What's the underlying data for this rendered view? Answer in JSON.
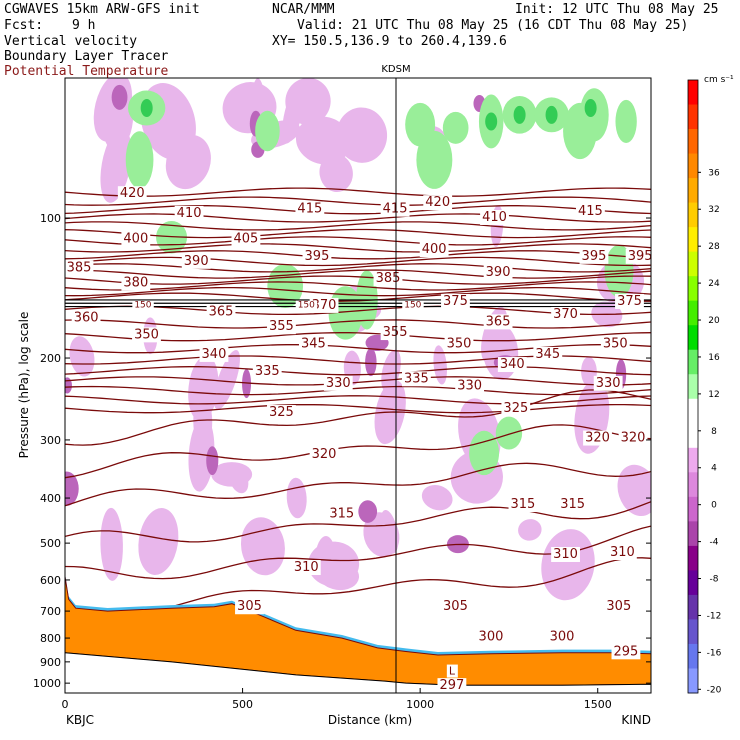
{
  "header": {
    "model": "CGWAVES 15km ARW-GFS init",
    "org": "NCAR/MMM",
    "init": "Init: 12 UTC Thu 08 May 25",
    "fcst_label": "Fcst:",
    "fcst_value": "9 h",
    "valid": "Valid: 21 UTC Thu 08 May 25 (16 CDT Thu 08 May 25)",
    "field1": "Vertical velocity",
    "field2": "Boundary Layer Tracer",
    "field3": "Potential Temperature",
    "xy": "XY= 150.5,136.9 to 260.4,139.6",
    "station_mid": "KDSM",
    "station_left": "KBJC",
    "station_right": "KIND"
  },
  "colors": {
    "theta_contour": "#7a0a0a",
    "terrain": "#ff8c00",
    "upward_green": "#55dd55",
    "downward_purple": "#cc88dd"
  },
  "chart_data": {
    "type": "cross-section",
    "xlabel": "Distance (km)",
    "ylabel": "Pressure (hPa), log scale",
    "x_ticks": [
      0,
      500,
      1000,
      1500
    ],
    "xlim": [
      0,
      1650
    ],
    "ylim": [
      1050,
      50
    ],
    "y_scale": "log",
    "y_ticks": [
      100,
      200,
      300,
      400,
      500,
      600,
      700,
      800,
      900,
      1000
    ],
    "colorbar": {
      "unit": "cm s⁻¹",
      "ticks": [
        36,
        32,
        28,
        24,
        20,
        16,
        12,
        8,
        4,
        0,
        -4,
        -8,
        -12,
        -16,
        -20
      ],
      "colors": [
        "#ff0000",
        "#ff3300",
        "#ff6600",
        "#ff8800",
        "#ffaa00",
        "#ffcc00",
        "#ffee00",
        "#ccff00",
        "#88ff00",
        "#44ee00",
        "#00dd00",
        "#66ee66",
        "#aaffaa",
        "#ffffff",
        "#ffffff",
        "#eeaaee",
        "#dd88dd",
        "#cc66cc",
        "#aa44aa",
        "#880088",
        "#660099",
        "#6633aa",
        "#6655cc",
        "#6677ee",
        "#8899ff"
      ]
    },
    "theta_labels": [
      {
        "v": "420",
        "x": 150,
        "p": 88
      },
      {
        "v": "410",
        "x": 310,
        "p": 97
      },
      {
        "v": "415",
        "x": 650,
        "p": 95
      },
      {
        "v": "415",
        "x": 890,
        "p": 95
      },
      {
        "v": "420",
        "x": 1010,
        "p": 92
      },
      {
        "v": "410",
        "x": 1170,
        "p": 99
      },
      {
        "v": "415",
        "x": 1440,
        "p": 96
      },
      {
        "v": "400",
        "x": 160,
        "p": 110
      },
      {
        "v": "405",
        "x": 470,
        "p": 110
      },
      {
        "v": "395",
        "x": 670,
        "p": 120
      },
      {
        "v": "400",
        "x": 1000,
        "p": 116
      },
      {
        "v": "390",
        "x": 1180,
        "p": 130
      },
      {
        "v": "395",
        "x": 1450,
        "p": 120
      },
      {
        "v": "395",
        "x": 1580,
        "p": 120
      },
      {
        "v": "385",
        "x": 0,
        "p": 127
      },
      {
        "v": "390",
        "x": 330,
        "p": 123
      },
      {
        "v": "380",
        "x": 160,
        "p": 137
      },
      {
        "v": "385",
        "x": 870,
        "p": 134
      },
      {
        "v": "360",
        "x": 20,
        "p": 163
      },
      {
        "v": "365",
        "x": 400,
        "p": 158
      },
      {
        "v": "370",
        "x": 690,
        "p": 153
      },
      {
        "v": "375",
        "x": 1060,
        "p": 150
      },
      {
        "v": "365",
        "x": 1180,
        "p": 166
      },
      {
        "v": "370",
        "x": 1370,
        "p": 160
      },
      {
        "v": "375",
        "x": 1550,
        "p": 150
      },
      {
        "v": "350",
        "x": 190,
        "p": 177
      },
      {
        "v": "355",
        "x": 570,
        "p": 170
      },
      {
        "v": "355",
        "x": 890,
        "p": 175
      },
      {
        "v": "350",
        "x": 1070,
        "p": 185
      },
      {
        "v": "345",
        "x": 660,
        "p": 185
      },
      {
        "v": "345",
        "x": 1320,
        "p": 195
      },
      {
        "v": "350",
        "x": 1510,
        "p": 185
      },
      {
        "v": "340",
        "x": 380,
        "p": 195
      },
      {
        "v": "340",
        "x": 1220,
        "p": 205
      },
      {
        "v": "335",
        "x": 530,
        "p": 212
      },
      {
        "v": "335",
        "x": 950,
        "p": 220
      },
      {
        "v": "330",
        "x": 730,
        "p": 225
      },
      {
        "v": "330",
        "x": 1100,
        "p": 228
      },
      {
        "v": "330",
        "x": 1490,
        "p": 225
      },
      {
        "v": "325",
        "x": 570,
        "p": 260
      },
      {
        "v": "325",
        "x": 1230,
        "p": 255
      },
      {
        "v": "320",
        "x": 690,
        "p": 320
      },
      {
        "v": "320",
        "x": 1460,
        "p": 295
      },
      {
        "v": "320",
        "x": 1560,
        "p": 295
      },
      {
        "v": "315",
        "x": 740,
        "p": 430
      },
      {
        "v": "315",
        "x": 1250,
        "p": 410
      },
      {
        "v": "315",
        "x": 1390,
        "p": 410
      },
      {
        "v": "310",
        "x": 640,
        "p": 560
      },
      {
        "v": "310",
        "x": 1370,
        "p": 525
      },
      {
        "v": "310",
        "x": 1530,
        "p": 520
      },
      {
        "v": "305",
        "x": 480,
        "p": 680
      },
      {
        "v": "305",
        "x": 1060,
        "p": 680
      },
      {
        "v": "305",
        "x": 1520,
        "p": 680
      },
      {
        "v": "300",
        "x": 1160,
        "p": 790
      },
      {
        "v": "300",
        "x": 1360,
        "p": 790
      },
      {
        "v": "295",
        "x": 1540,
        "p": 850
      },
      {
        "v": "297",
        "x": 1050,
        "p": 1005
      }
    ],
    "tropopause_labels": [
      {
        "v": "150",
        "x": 180,
        "p": 152
      },
      {
        "v": "150",
        "x": 640,
        "p": 152
      },
      {
        "v": "150",
        "x": 940,
        "p": 152
      }
    ],
    "marker_labels": [
      {
        "v": "L",
        "x": 1050,
        "p": 935
      }
    ]
  }
}
